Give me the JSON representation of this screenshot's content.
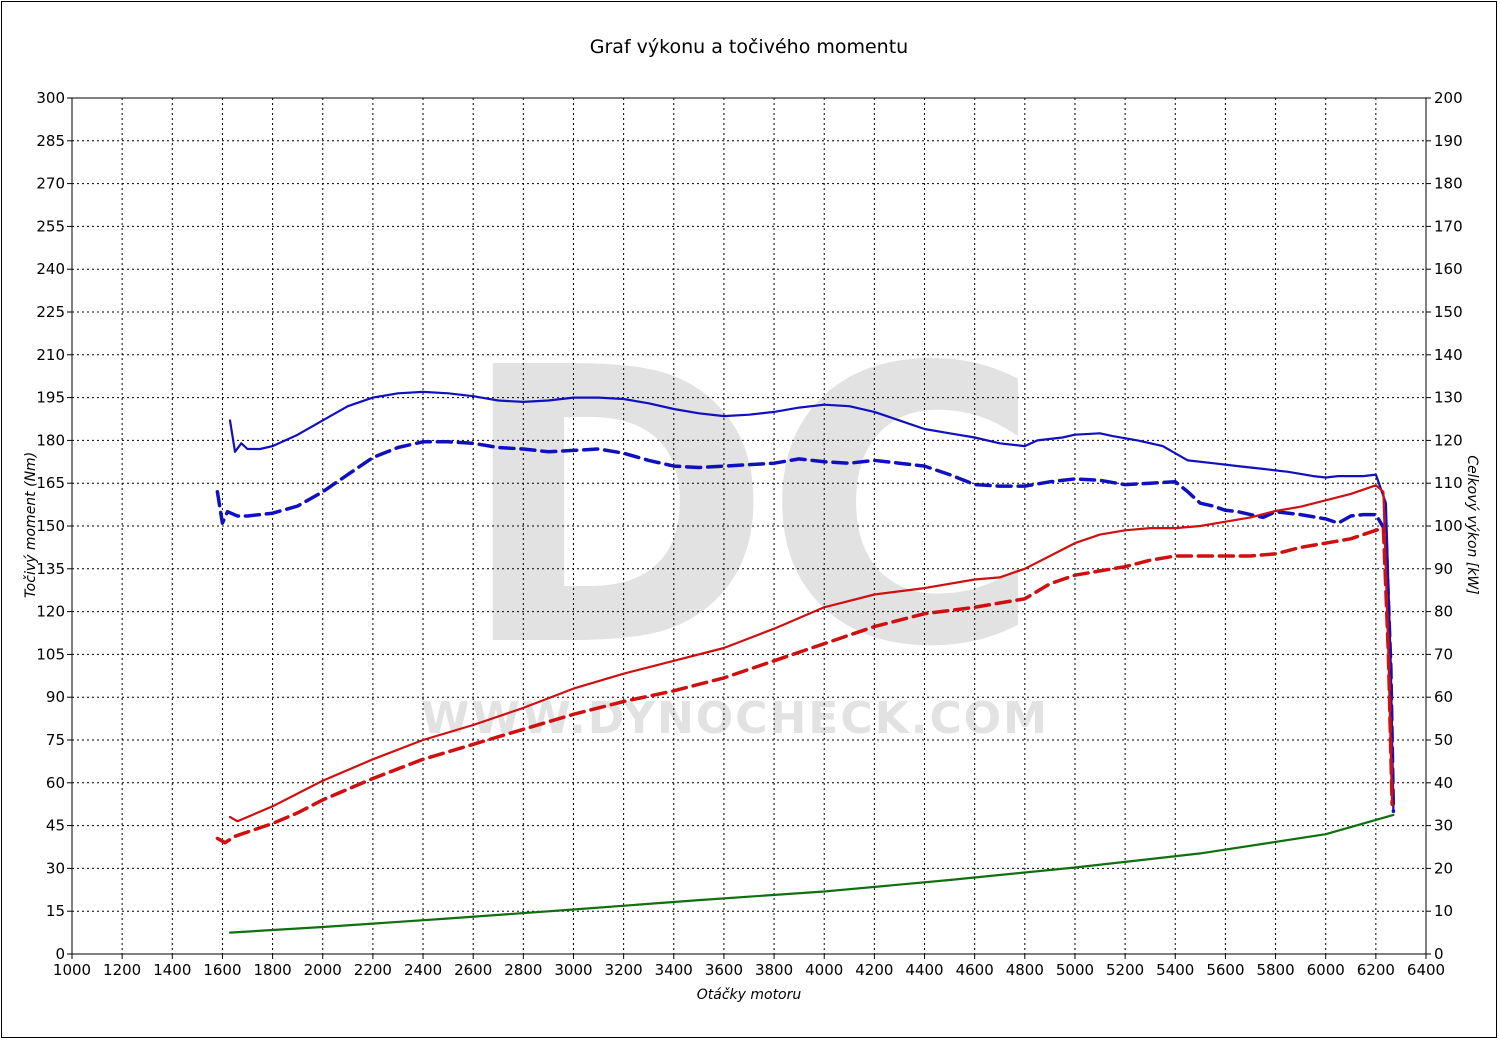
{
  "chart_data": {
    "type": "line",
    "title": "Graf výkonu a točivého momentu",
    "xlabel": "Otáčky motoru",
    "ylabel_left": "Točivý moment (Nm)",
    "ylabel_right": "Celkový výkon [kW]",
    "xlim": [
      1000,
      6400
    ],
    "ylim_left": [
      0,
      300
    ],
    "ylim_right": [
      0,
      200
    ],
    "x_ticks": [
      "1000",
      "1200",
      "1400",
      "1600",
      "1800",
      "2000",
      "2200",
      "2400",
      "2600",
      "2800",
      "3000",
      "3200",
      "3400",
      "3600",
      "3800",
      "4000",
      "4200",
      "4400",
      "4600",
      "4800",
      "5000",
      "5200",
      "5400",
      "5600",
      "5800",
      "6000",
      "6200",
      "6400"
    ],
    "y_left_ticks": [
      "0",
      "15",
      "30",
      "45",
      "60",
      "75",
      "90",
      "105",
      "120",
      "135",
      "150",
      "165",
      "180",
      "195",
      "210",
      "225",
      "240",
      "255",
      "270",
      "285",
      "300"
    ],
    "y_right_ticks": [
      "0",
      "10",
      "20",
      "30",
      "40",
      "50",
      "60",
      "70",
      "80",
      "90",
      "100",
      "110",
      "120",
      "130",
      "140",
      "150",
      "160",
      "170",
      "180",
      "190",
      "200"
    ],
    "grid": true,
    "watermark": {
      "logo": "DC",
      "text": "WWW.DYNOCHECK.COM"
    },
    "series": [
      {
        "axis": "left",
        "color": "#1010c0",
        "style": "solid",
        "width": 2.2,
        "points": [
          [
            1630,
            187
          ],
          [
            1650,
            176
          ],
          [
            1675,
            179
          ],
          [
            1700,
            177
          ],
          [
            1750,
            177
          ],
          [
            1800,
            178
          ],
          [
            1900,
            182
          ],
          [
            2000,
            187
          ],
          [
            2100,
            192
          ],
          [
            2200,
            195
          ],
          [
            2300,
            196.5
          ],
          [
            2400,
            197
          ],
          [
            2500,
            196.5
          ],
          [
            2600,
            195.5
          ],
          [
            2700,
            194
          ],
          [
            2800,
            193.5
          ],
          [
            2900,
            194
          ],
          [
            3000,
            195
          ],
          [
            3100,
            195
          ],
          [
            3200,
            194.5
          ],
          [
            3300,
            193
          ],
          [
            3400,
            191
          ],
          [
            3500,
            189.5
          ],
          [
            3600,
            188.5
          ],
          [
            3700,
            189
          ],
          [
            3800,
            190
          ],
          [
            3900,
            191.5
          ],
          [
            4000,
            192.5
          ],
          [
            4100,
            192
          ],
          [
            4200,
            190
          ],
          [
            4300,
            187
          ],
          [
            4400,
            184
          ],
          [
            4500,
            182.5
          ],
          [
            4600,
            181
          ],
          [
            4700,
            179
          ],
          [
            4800,
            178
          ],
          [
            4850,
            180
          ],
          [
            4950,
            181
          ],
          [
            5000,
            182
          ],
          [
            5100,
            182.5
          ],
          [
            5150,
            181.5
          ],
          [
            5250,
            180
          ],
          [
            5350,
            178
          ],
          [
            5450,
            173
          ],
          [
            5550,
            172
          ],
          [
            5650,
            171
          ],
          [
            5750,
            170
          ],
          [
            5850,
            169
          ],
          [
            5950,
            167.5
          ],
          [
            6000,
            167
          ],
          [
            6050,
            167.5
          ],
          [
            6150,
            167.5
          ],
          [
            6200,
            168
          ],
          [
            6240,
            158
          ],
          [
            6260,
            100
          ],
          [
            6270,
            50
          ]
        ]
      },
      {
        "axis": "left",
        "color": "#1010c0",
        "style": "dashed",
        "width": 3.5,
        "points": [
          [
            1580,
            162
          ],
          [
            1600,
            151
          ],
          [
            1620,
            155
          ],
          [
            1660,
            153.5
          ],
          [
            1700,
            153.5
          ],
          [
            1800,
            154.5
          ],
          [
            1900,
            157
          ],
          [
            2000,
            162
          ],
          [
            2100,
            168
          ],
          [
            2200,
            174
          ],
          [
            2300,
            177.5
          ],
          [
            2400,
            179.5
          ],
          [
            2500,
            179.5
          ],
          [
            2600,
            179
          ],
          [
            2700,
            177.5
          ],
          [
            2800,
            177
          ],
          [
            2900,
            176
          ],
          [
            3000,
            176.5
          ],
          [
            3100,
            177
          ],
          [
            3200,
            175.5
          ],
          [
            3300,
            173
          ],
          [
            3400,
            171
          ],
          [
            3500,
            170.5
          ],
          [
            3600,
            171
          ],
          [
            3700,
            171.5
          ],
          [
            3800,
            172
          ],
          [
            3900,
            173.5
          ],
          [
            4000,
            172.5
          ],
          [
            4100,
            172
          ],
          [
            4200,
            173
          ],
          [
            4300,
            172
          ],
          [
            4400,
            171
          ],
          [
            4500,
            168
          ],
          [
            4600,
            164.5
          ],
          [
            4700,
            164
          ],
          [
            4800,
            164
          ],
          [
            4900,
            165.5
          ],
          [
            5000,
            166.5
          ],
          [
            5100,
            166
          ],
          [
            5200,
            164.5
          ],
          [
            5300,
            165
          ],
          [
            5400,
            165.5
          ],
          [
            5450,
            162
          ],
          [
            5500,
            158
          ],
          [
            5550,
            157
          ],
          [
            5600,
            155.5
          ],
          [
            5650,
            155
          ],
          [
            5700,
            154
          ],
          [
            5750,
            153
          ],
          [
            5800,
            155
          ],
          [
            5900,
            154
          ],
          [
            6000,
            152.5
          ],
          [
            6050,
            151
          ],
          [
            6100,
            153.5
          ],
          [
            6150,
            154
          ],
          [
            6200,
            154
          ],
          [
            6240,
            148
          ],
          [
            6260,
            100
          ],
          [
            6270,
            50
          ]
        ]
      },
      {
        "axis": "right",
        "color": "#d01010",
        "style": "solid",
        "width": 2.2,
        "points": [
          [
            1630,
            32
          ],
          [
            1660,
            31
          ],
          [
            1700,
            32
          ],
          [
            1800,
            34.5
          ],
          [
            1900,
            37.5
          ],
          [
            2000,
            40.5
          ],
          [
            2200,
            45.5
          ],
          [
            2400,
            50
          ],
          [
            2600,
            53.5
          ],
          [
            2800,
            57.5
          ],
          [
            3000,
            62
          ],
          [
            3200,
            65.5
          ],
          [
            3400,
            68.5
          ],
          [
            3600,
            71.5
          ],
          [
            3800,
            76
          ],
          [
            4000,
            81
          ],
          [
            4200,
            84
          ],
          [
            4400,
            85.5
          ],
          [
            4600,
            87.5
          ],
          [
            4700,
            88
          ],
          [
            4800,
            90
          ],
          [
            4900,
            93
          ],
          [
            5000,
            96
          ],
          [
            5100,
            98
          ],
          [
            5200,
            99
          ],
          [
            5300,
            99.5
          ],
          [
            5400,
            99.5
          ],
          [
            5500,
            100
          ],
          [
            5600,
            101
          ],
          [
            5700,
            102
          ],
          [
            5800,
            103.5
          ],
          [
            5900,
            104.5
          ],
          [
            6000,
            106
          ],
          [
            6100,
            107.5
          ],
          [
            6200,
            109.5
          ],
          [
            6230,
            108
          ],
          [
            6250,
            70
          ],
          [
            6265,
            35
          ]
        ]
      },
      {
        "axis": "right",
        "color": "#d01010",
        "style": "dashed",
        "width": 3.5,
        "points": [
          [
            1580,
            27
          ],
          [
            1610,
            26
          ],
          [
            1650,
            27.5
          ],
          [
            1700,
            28.5
          ],
          [
            1800,
            30.5
          ],
          [
            1900,
            33
          ],
          [
            2000,
            36
          ],
          [
            2200,
            41
          ],
          [
            2400,
            45.5
          ],
          [
            2600,
            49
          ],
          [
            2800,
            52.5
          ],
          [
            3000,
            56
          ],
          [
            3200,
            59
          ],
          [
            3400,
            61.5
          ],
          [
            3600,
            64.5
          ],
          [
            3800,
            68.5
          ],
          [
            4000,
            72.5
          ],
          [
            4200,
            76.5
          ],
          [
            4400,
            79.5
          ],
          [
            4600,
            81
          ],
          [
            4700,
            82
          ],
          [
            4800,
            83
          ],
          [
            4900,
            86.5
          ],
          [
            5000,
            88.5
          ],
          [
            5100,
            89.5
          ],
          [
            5200,
            90.5
          ],
          [
            5300,
            92
          ],
          [
            5400,
            93
          ],
          [
            5500,
            93
          ],
          [
            5600,
            93
          ],
          [
            5700,
            93
          ],
          [
            5800,
            93.5
          ],
          [
            5900,
            95
          ],
          [
            6000,
            96
          ],
          [
            6100,
            97
          ],
          [
            6200,
            99
          ],
          [
            6230,
            99.5
          ],
          [
            6250,
            70
          ],
          [
            6265,
            35
          ]
        ]
      },
      {
        "axis": "right",
        "color": "#107010",
        "style": "solid",
        "width": 2.2,
        "points": [
          [
            1630,
            5
          ],
          [
            2000,
            6.3
          ],
          [
            2500,
            8.3
          ],
          [
            3000,
            10.4
          ],
          [
            3500,
            12.6
          ],
          [
            4000,
            14.6
          ],
          [
            4500,
            17.3
          ],
          [
            5000,
            20.2
          ],
          [
            5500,
            23.5
          ],
          [
            6000,
            28
          ],
          [
            6270,
            32.5
          ]
        ]
      }
    ]
  }
}
